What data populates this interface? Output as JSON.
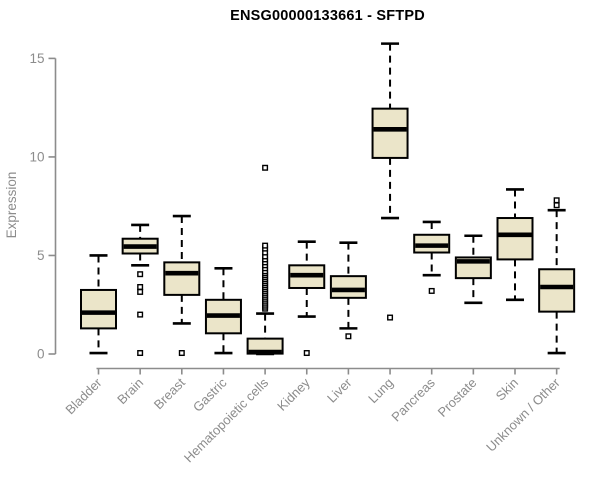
{
  "page": {
    "background": "#FFFFFF"
  },
  "chart_data": {
    "type": "boxplot",
    "title": "ENSG00000133661 - SFTPD",
    "xlabel": "",
    "ylabel": "Expression",
    "ylim": [
      0,
      15
    ],
    "yticks": [
      "0",
      "5",
      "10",
      "15"
    ],
    "grid": false,
    "legend": "none",
    "colors": {
      "box_fill": "#EBE5C9",
      "box_stroke": "#000000",
      "median": "#000000",
      "whisker": "#000000",
      "outlier_fill": "#FFFFFF",
      "axis": "#8C8C8C",
      "tick_label": "#8C8C8C",
      "title": "#000000"
    },
    "categories": [
      "Bladder",
      "Brain",
      "Breast",
      "Gastric",
      "Hematopoietic cells",
      "Kidney",
      "Liver",
      "Lung",
      "Pancreas",
      "Prostate",
      "Skin",
      "Unknown / Other"
    ],
    "boxes": [
      {
        "category": "Bladder",
        "whisker_low": 0.05,
        "q1": 1.3,
        "median": 2.1,
        "q3": 3.25,
        "whisker_high": 5.0,
        "outliers": []
      },
      {
        "category": "Brain",
        "whisker_low": 4.5,
        "q1": 5.1,
        "median": 5.45,
        "q3": 5.85,
        "whisker_high": 6.55,
        "outliers": [
          4.05,
          3.4,
          3.15,
          2.0,
          0.05
        ]
      },
      {
        "category": "Breast",
        "whisker_low": 1.55,
        "q1": 3.0,
        "median": 4.1,
        "q3": 4.65,
        "whisker_high": 7.0,
        "outliers": [
          0.05
        ]
      },
      {
        "category": "Gastric",
        "whisker_low": 0.05,
        "q1": 1.05,
        "median": 1.95,
        "q3": 2.75,
        "whisker_high": 4.35,
        "outliers": []
      },
      {
        "category": "Hematopoietic cells",
        "whisker_low": 0.0,
        "q1": 0.02,
        "median": 0.1,
        "q3": 0.78,
        "whisker_high": 2.05,
        "outliers": [
          2.3,
          2.4,
          2.5,
          2.6,
          2.7,
          2.8,
          2.9,
          3.0,
          3.1,
          3.2,
          3.3,
          3.4,
          3.5,
          3.6,
          3.7,
          3.8,
          3.9,
          4.0,
          4.1,
          4.2,
          4.35,
          4.5,
          4.65,
          4.8,
          4.95,
          5.15,
          5.35,
          5.5,
          9.45
        ]
      },
      {
        "category": "Kidney",
        "whisker_low": 1.9,
        "q1": 3.35,
        "median": 4.0,
        "q3": 4.5,
        "whisker_high": 5.7,
        "outliers": [
          0.05
        ]
      },
      {
        "category": "Liver",
        "whisker_low": 1.3,
        "q1": 2.85,
        "median": 3.25,
        "q3": 3.95,
        "whisker_high": 5.65,
        "outliers": [
          0.9
        ]
      },
      {
        "category": "Lung",
        "whisker_low": 6.9,
        "q1": 9.95,
        "median": 11.4,
        "q3": 12.45,
        "whisker_high": 15.75,
        "outliers": [
          1.85
        ]
      },
      {
        "category": "Pancreas",
        "whisker_low": 4.0,
        "q1": 5.15,
        "median": 5.5,
        "q3": 6.05,
        "whisker_high": 6.7,
        "outliers": [
          3.2
        ]
      },
      {
        "category": "Prostate",
        "whisker_low": 2.6,
        "q1": 3.85,
        "median": 4.7,
        "q3": 4.9,
        "whisker_high": 6.0,
        "outliers": []
      },
      {
        "category": "Skin",
        "whisker_low": 2.75,
        "q1": 4.8,
        "median": 6.05,
        "q3": 6.9,
        "whisker_high": 8.35,
        "outliers": []
      },
      {
        "category": "Unknown / Other",
        "whisker_low": 0.05,
        "q1": 2.15,
        "median": 3.4,
        "q3": 4.3,
        "whisker_high": 7.3,
        "outliers": [
          7.55,
          7.8
        ]
      }
    ]
  }
}
